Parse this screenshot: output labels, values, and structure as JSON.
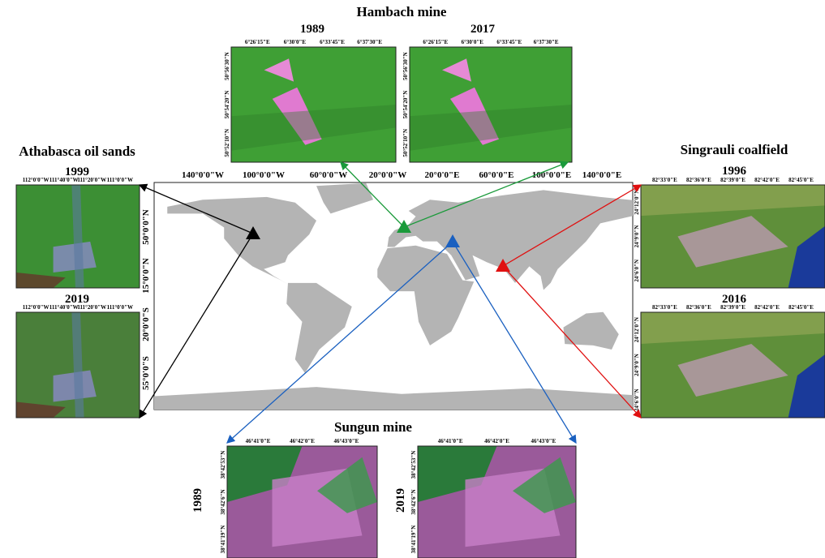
{
  "map": {
    "lon_labels": [
      "140°0'0\"W",
      "100°0'0\"W",
      "60°0'0\"W",
      "20°0'0\"W",
      "20°0'0\"E",
      "60°0'0\"E",
      "100°0'0\"E",
      "140°0'0\"E"
    ],
    "lat_labels": [
      "50°0'0\"N",
      "15°0'0\"N",
      "20°0'0\"S",
      "55°0'0\"S"
    ]
  },
  "sites": [
    {
      "title": "Hambach mine",
      "panels": [
        {
          "year": "1989",
          "x_labels": [
            "6°26'15\"E",
            "6°30'0\"E",
            "6°33'45\"E",
            "6°37'30\"E"
          ],
          "y_labels": [
            "50°56'30\"N",
            "50°54'20\"N",
            "50°52'10\"N"
          ]
        },
        {
          "year": "2017",
          "x_labels": [
            "6°26'15\"E",
            "6°30'0\"E",
            "6°33'45\"E",
            "6°37'30\"E"
          ],
          "y_labels": [
            "50°56'30\"N",
            "50°54'20\"N",
            "50°52'10\"N"
          ]
        }
      ]
    },
    {
      "title": "Athabasca oil sands",
      "panels": [
        {
          "year": "1999",
          "x_labels": [
            "112°0'0\"W",
            "111°40'0\"W",
            "111°20'0\"W",
            "111°0'0\"W"
          ],
          "y_labels": []
        },
        {
          "year": "2019",
          "x_labels": [
            "112°0'0\"W",
            "111°40'0\"W",
            "111°20'0\"W",
            "111°0'0\"W"
          ],
          "y_labels": []
        }
      ]
    },
    {
      "title": "Singrauli coalfield",
      "panels": [
        {
          "year": "1996",
          "x_labels": [
            "82°33'0\"E",
            "82°36'0\"E",
            "82°39'0\"E",
            "82°42'0\"E",
            "82°45'0\"E"
          ],
          "y_labels": [
            "24°12'0\"N",
            "24°9'0\"N",
            "24°6'0\"N"
          ]
        },
        {
          "year": "2016",
          "x_labels": [
            "82°33'0\"E",
            "82°36'0\"E",
            "82°39'0\"E",
            "82°42'0\"E",
            "82°45'0\"E"
          ],
          "y_labels": [
            "24°12'0\"N",
            "24°9'0\"N",
            "24°6'0\"N"
          ]
        }
      ]
    },
    {
      "title": "Sungun mine",
      "panels": [
        {
          "year": "1989",
          "x_labels": [
            "46°41'0\"E",
            "46°42'0\"E",
            "46°43'0\"E"
          ],
          "y_labels": [
            "38°42'53\"N",
            "38°42'6\"N",
            "38°41'19\"N"
          ]
        },
        {
          "year": "2019",
          "x_labels": [
            "46°41'0\"E",
            "46°42'0\"E",
            "46°43'0\"E"
          ],
          "y_labels": [
            "38°42'53\"N",
            "38°42'6\"N",
            "38°41'19\"N"
          ]
        }
      ]
    }
  ]
}
